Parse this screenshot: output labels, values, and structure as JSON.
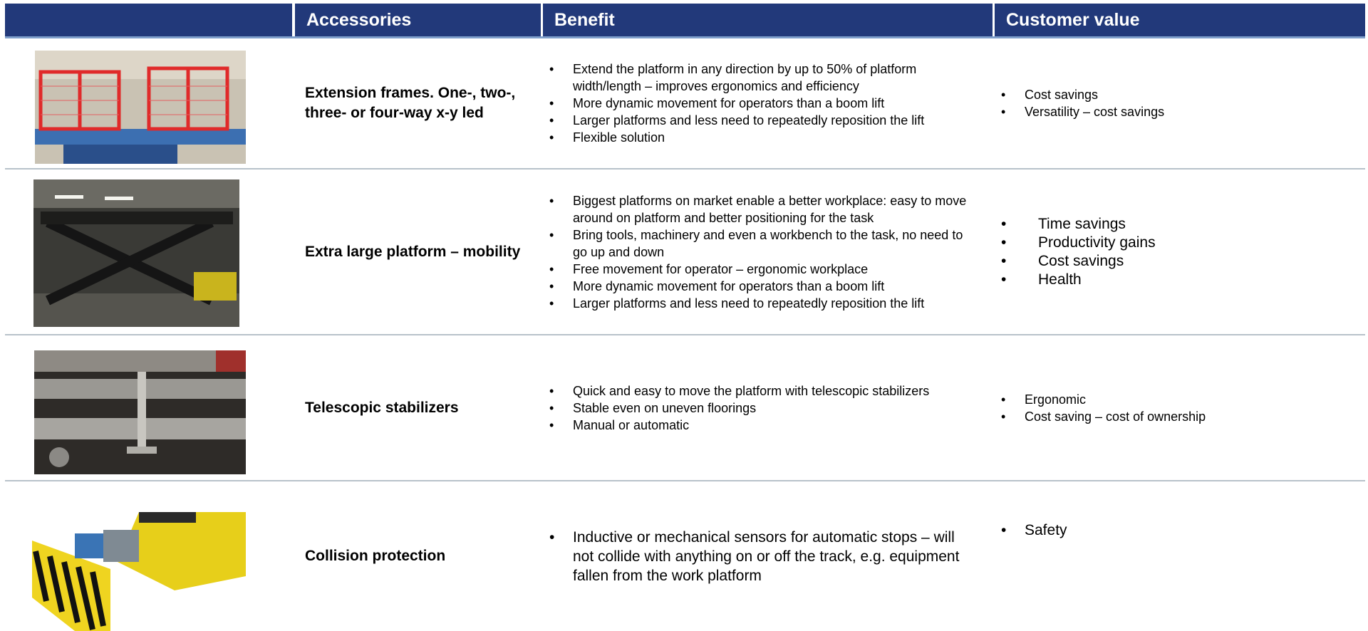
{
  "header": {
    "columns": [
      "Accessories",
      "Benefit",
      "Customer value"
    ]
  },
  "rows": [
    {
      "accessory": "Extension frames. One-, two-, three- or four-way x-y led",
      "benefits": [
        "Extend the platform in any direction by up to 50% of platform width/length – improves ergonomics and efficiency",
        "More dynamic movement for operators than a boom lift",
        "Larger platforms and less need to repeatedly reposition the lift",
        "Flexible solution"
      ],
      "customer_value": [
        "Cost savings",
        "Versatility – cost savings"
      ]
    },
    {
      "accessory": "Extra large platform – mobility",
      "benefits": [
        "Biggest platforms on market enable a better workplace: easy to move around on platform and better positioning for the task",
        "Bring tools, machinery and even a workbench to the task, no need to go up and down",
        "Free movement for operator – ergonomic workplace",
        "More dynamic movement for operators than a boom lift",
        "Larger platforms and less need to repeatedly reposition the lift"
      ],
      "customer_value": [
        "Time savings",
        "Productivity gains",
        "Cost savings",
        "Health"
      ]
    },
    {
      "accessory": "Telescopic stabilizers",
      "benefits": [
        "Quick and easy to move the platform with telescopic stabilizers",
        "Stable even on uneven floorings",
        "Manual or automatic"
      ],
      "customer_value": [
        "Ergonomic",
        "Cost saving – cost of ownership"
      ]
    },
    {
      "accessory": "Collision protection",
      "benefits": [
        "Inductive or mechanical sensors for automatic stops – will not collide with anything on or off the track, e.g. equipment fallen from the work platform"
      ],
      "customer_value": [
        "Safety"
      ]
    }
  ]
}
